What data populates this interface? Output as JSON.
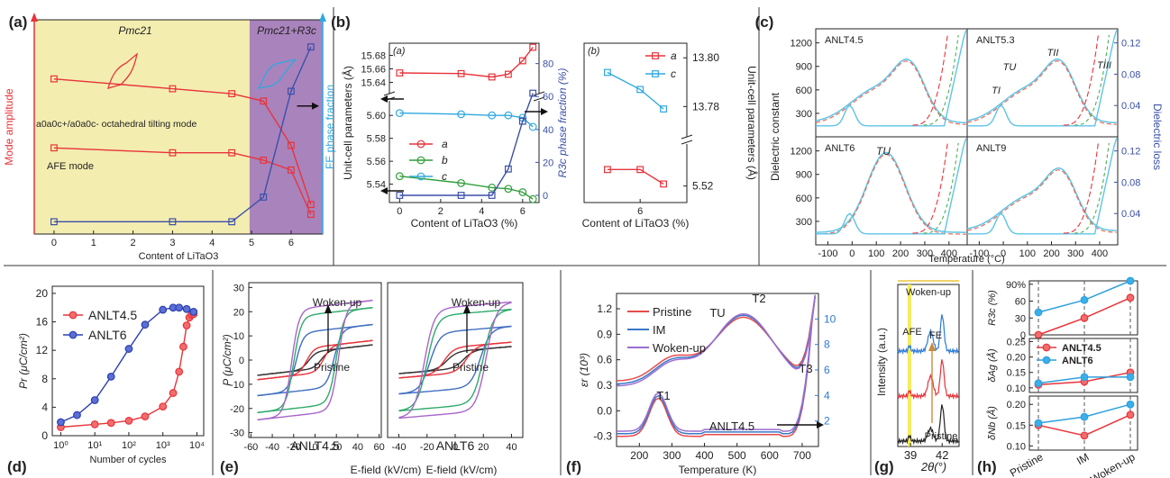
{
  "panels": {
    "a": {
      "label": "(a)"
    },
    "b": {
      "label": "(b)"
    },
    "c": {
      "label": "(c)"
    },
    "d": {
      "label": "(d)"
    },
    "e": {
      "label": "(e)"
    },
    "f": {
      "label": "(f)"
    },
    "g": {
      "label": "(g)"
    },
    "h": {
      "label": "(h)"
    }
  },
  "chart_data": [
    {
      "panel": "a",
      "type": "line",
      "xlabel": "Content of LiTaO3",
      "ylabel": "Mode amplitude",
      "ylabel_right": "FE phase fraction",
      "xlim": [
        -0.5,
        6.8
      ],
      "xticks": [
        0,
        1,
        2,
        3,
        4,
        5,
        6
      ],
      "region_labels": [
        "Pmc21",
        "Pmc21+R3c"
      ],
      "annotations": [
        "a0a0c+/a0a0c- octahedral tilting mode",
        "AFE mode"
      ],
      "colors": {
        "left": "#e8333a",
        "right": "#2fa8e0",
        "fe": "#3b4fa8",
        "bg_left": "#f3edb0",
        "bg_right": "#a983bc"
      },
      "series": [
        {
          "x": [
            0,
            3,
            4.5,
            5.3,
            6,
            6.5
          ],
          "values": [
            0.78,
            0.74,
            0.72,
            0.69,
            0.51,
            0.27
          ]
        },
        {
          "x": [
            0,
            3,
            4.5,
            5.3,
            6,
            6.5
          ],
          "values": [
            0.5,
            0.48,
            0.48,
            0.45,
            0.41,
            0.23
          ]
        },
        {
          "x": [
            0,
            3,
            4.5,
            5.3,
            6,
            6.5
          ],
          "values": [
            0.2,
            0.2,
            0.2,
            0.3,
            0.73,
            0.91
          ]
        }
      ]
    },
    {
      "panel": "b-left",
      "type": "line",
      "inner_label": "(a)",
      "xlabel": "Content of LiTaO3 (%)",
      "ylabel": "Unit-cell parameters (Å)",
      "ylabel_right": "R3c phase fraction (%)",
      "xticks": [
        0,
        2,
        4,
        6
      ],
      "yticks": [
        "15.68",
        "15.66",
        "15.64",
        "5.60",
        "5.58",
        "5.56",
        "5.54"
      ],
      "yticks_right": [
        "80",
        "60",
        "40",
        "20",
        "0"
      ],
      "legend": [
        "a",
        "b",
        "c"
      ],
      "series": [
        {
          "name": "a",
          "x": [
            0,
            3,
            4.5,
            5.3,
            6,
            6.5
          ],
          "values": [
            15.654,
            15.653,
            15.648,
            15.652,
            15.672,
            15.692
          ]
        },
        {
          "name": "b",
          "x": [
            0,
            3,
            4.5,
            5.3,
            6,
            6.5
          ],
          "values": [
            5.547,
            5.541,
            5.537,
            5.536,
            5.533,
            5.527
          ]
        },
        {
          "name": "c",
          "x": [
            0,
            3,
            4.5,
            5.3,
            6,
            6.5
          ],
          "values": [
            5.602,
            5.601,
            5.6,
            5.6,
            5.598,
            5.59
          ]
        },
        {
          "x": [
            0,
            3,
            4.5,
            5.3,
            6,
            6.5
          ],
          "values": [
            0,
            0,
            0,
            16,
            45,
            62
          ]
        }
      ]
    },
    {
      "panel": "b-right",
      "type": "line",
      "inner_label": "(b)",
      "xlabel": "Content of LiTaO3 (%)",
      "ylabel_right": "Unit-cell parameters (Å)",
      "xticks": [
        6
      ],
      "yticks_right": [
        "13.80",
        "13.78",
        "5.52"
      ],
      "legend": [
        "a",
        "c"
      ],
      "series": [
        {
          "name": "a",
          "x": [
            5.3,
            6,
            6.5
          ],
          "values": [
            5.528,
            5.528,
            5.521
          ]
        },
        {
          "name": "c",
          "x": [
            5.3,
            6,
            6.5
          ],
          "values": [
            13.794,
            13.787,
            13.779
          ]
        }
      ]
    },
    {
      "panel": "c",
      "type": "line",
      "xlabel": "Temperature (°C)",
      "ylabel": "Dielectric constant",
      "ylabel_right": "Dielectric loss",
      "xticks": [
        -100,
        0,
        100,
        200,
        300,
        400
      ],
      "yticks": [
        300,
        600,
        900,
        1200
      ],
      "yticks_right": [
        "0.04",
        "0.08",
        "0.12"
      ],
      "subplots": [
        "ANLT4.5",
        "ANLT5.3",
        "ANLT6",
        "ANLT9"
      ],
      "markers": [
        "TI",
        "TU",
        "TII",
        "TIII",
        "TU"
      ]
    },
    {
      "panel": "d",
      "type": "line",
      "xlabel": "Number of cycles",
      "ylabel": "Pr (μC/cm²)",
      "yticks": [
        0,
        4,
        8,
        12,
        16,
        20
      ],
      "xticks": [
        "10⁰",
        "10¹",
        "10²",
        "10³",
        "10⁴"
      ],
      "ylim": [
        0,
        21
      ],
      "series": [
        {
          "name": "ANLT4.5",
          "x": [
            1,
            10,
            30,
            100,
            300,
            1000,
            2000,
            3000,
            4000,
            5000,
            6000,
            7000,
            8000
          ],
          "values": [
            1.2,
            1.6,
            1.8,
            2.1,
            2.7,
            4.1,
            6,
            9,
            12.5,
            15.5,
            16.6,
            17,
            17.1
          ]
        },
        {
          "name": "ANLT6",
          "x": [
            1,
            3,
            10,
            30,
            100,
            300,
            1000,
            2000,
            3000,
            5000,
            8000
          ],
          "values": [
            1.9,
            2.9,
            5,
            8.3,
            12.2,
            15.6,
            17.7,
            18,
            18,
            17.8,
            17.4
          ]
        }
      ]
    },
    {
      "panel": "e",
      "type": "line",
      "xlabel": "E-field (kV/cm)",
      "ylabel": "P (μC/cm²)",
      "yticks": [
        -30,
        -20,
        -10,
        0,
        10,
        20,
        30
      ],
      "subplots": [
        {
          "name": "ANLT4.5",
          "xticks": [
            -60,
            -40,
            -20,
            0,
            20,
            40,
            60
          ]
        },
        {
          "name": "ANLT6",
          "xticks": [
            -40,
            -20,
            0,
            20,
            40
          ]
        }
      ],
      "annotations": [
        "Woken-up",
        "Pristine"
      ]
    },
    {
      "panel": "f",
      "type": "line",
      "xlabel": "Temperature (K)",
      "ylabel": "εr (10³)",
      "xticks": [
        200,
        300,
        400,
        500,
        600,
        700
      ],
      "yticks": [
        "-0.3",
        "0.0",
        "0.3",
        "0.6",
        "0.9",
        "1.2"
      ],
      "yticks_right": [
        "2",
        "4",
        "6",
        "8",
        "10"
      ],
      "legend": [
        "Pristine",
        "IM",
        "Woken-up"
      ],
      "sample_label": "ANLT4.5",
      "markers": [
        "T1",
        "TU",
        "T2",
        "T3"
      ],
      "colors": {
        "Pristine": "#e94b4b",
        "IM": "#3a78c8",
        "Woken-up": "#9b6fd0"
      }
    },
    {
      "panel": "g",
      "type": "line",
      "xlabel": "2θ(°)",
      "ylabel": "Intensity (a.u.)",
      "xticks": [
        39,
        42
      ],
      "annotations": [
        "Woken-up",
        "AFE",
        "FE",
        "Pristine"
      ]
    },
    {
      "panel": "h",
      "type": "line",
      "categories": [
        "Pristine",
        "IM",
        "Woken-up"
      ],
      "legend": [
        "ANLT4.5",
        "ANLT6"
      ],
      "subplots": [
        {
          "ylabel": "R3c (%)",
          "yticks": [
            "0",
            "30",
            "60",
            "90%"
          ],
          "series": [
            {
              "name": "ANLT4.5",
              "values": [
                0,
                30,
                66
              ]
            },
            {
              "name": "ANLT6",
              "values": [
                40,
                62,
                96
              ]
            }
          ]
        },
        {
          "ylabel": "δAg (Å)",
          "yticks": [
            "0.10",
            "0.15",
            "0.20",
            "0.25"
          ],
          "series": [
            {
              "name": "ANLT4.5",
              "values": [
                0.11,
                0.12,
                0.15
              ]
            },
            {
              "name": "ANLT6",
              "values": [
                0.115,
                0.135,
                0.135
              ]
            }
          ]
        },
        {
          "ylabel": "δNb (Å)",
          "yticks": [
            "0.10",
            "0.15",
            "0.20"
          ],
          "series": [
            {
              "name": "ANLT4.5",
              "values": [
                0.15,
                0.125,
                0.175
              ]
            },
            {
              "name": "ANLT6",
              "values": [
                0.155,
                0.17,
                0.2
              ]
            }
          ]
        }
      ]
    }
  ]
}
